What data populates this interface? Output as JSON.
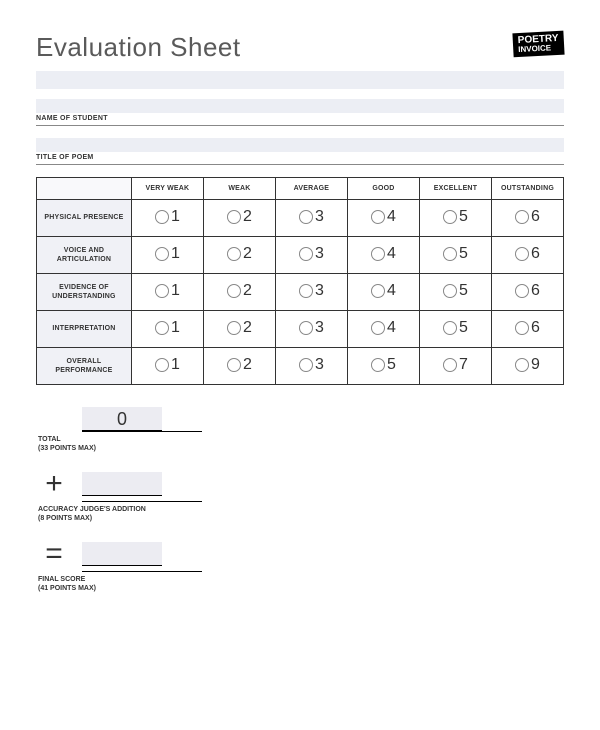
{
  "header": {
    "title": "Evaluation Sheet",
    "logo_line1": "POETRY",
    "logo_line2": "INVOICE"
  },
  "fields": {
    "name_label": "NAME OF STUDENT",
    "title_label": "TITLE OF POEM"
  },
  "rubric": {
    "columns": [
      "VERY WEAK",
      "WEAK",
      "AVERAGE",
      "GOOD",
      "EXCELLENT",
      "OUTSTANDING"
    ],
    "rows": [
      {
        "label": "PHYSICAL PRESENCE",
        "values": [
          1,
          2,
          3,
          4,
          5,
          6
        ]
      },
      {
        "label": "VOICE AND ARTICULATION",
        "values": [
          1,
          2,
          3,
          4,
          5,
          6
        ]
      },
      {
        "label": "EVIDENCE OF UNDERSTANDING",
        "values": [
          1,
          2,
          3,
          4,
          5,
          6
        ]
      },
      {
        "label": "INTERPRETATION",
        "values": [
          1,
          2,
          3,
          4,
          5,
          6
        ]
      },
      {
        "label": "OVERALL PERFORMANCE",
        "values": [
          1,
          2,
          3,
          5,
          7,
          9
        ]
      }
    ],
    "col_width_first": "18%",
    "col_width_rest": "13.66%",
    "header_bg": "#ffffff",
    "rowhead_bg": "#f0f1f6",
    "border_color": "#333333",
    "radio_border": "#888888"
  },
  "totals": {
    "total_value": "0",
    "total_label": "TOTAL",
    "total_sub": "(33 POINTS MAX)",
    "plus_op": "+",
    "accuracy_label": "ACCURACY JUDGE'S ADDITION",
    "accuracy_sub": "(8 POINTS MAX)",
    "equals_op": "=",
    "final_label": "FINAL SCORE",
    "final_sub": "(41 POINTS MAX)"
  },
  "colors": {
    "page_bg": "#ffffff",
    "field_bar": "#eceef4",
    "text": "#333333"
  }
}
